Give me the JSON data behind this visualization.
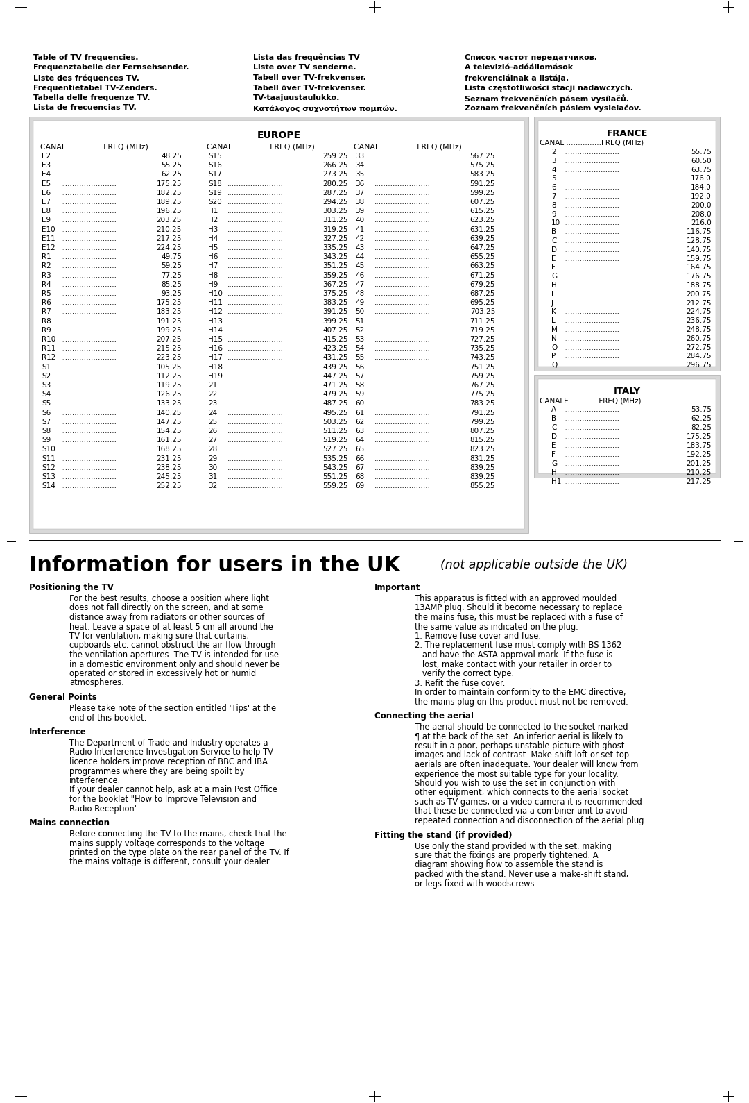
{
  "page_bg": "#ffffff",
  "header_col1": [
    "Table of TV frequencies.",
    "Frequenztabelle der Fernsehsender.",
    "Liste des fréquences TV.",
    "Frequentietabel TV-Zenders.",
    "Tabella delle frequenze TV.",
    "Lista de frecuencias TV."
  ],
  "header_col2": [
    "Lista das frequências TV",
    "Liste over TV senderne.",
    "Tabell over TV-frekvenser.",
    "Tabell över TV-frekvenser.",
    "TV-taajuustaulukko.",
    "Κατάλογος συχνοτήτων πομπών."
  ],
  "header_col3": [
    "Список частот передатчиков.",
    "A televizió-adóállomások",
    "frekvenciáinak a listája.",
    "Lista częstotliwości stacji nadawczych.",
    "Seznam frekvenčních pásem vysílačů.",
    "Zoznam frekvenčních pásiem vysielačov."
  ],
  "europe_col1": [
    [
      "E2",
      "48.25"
    ],
    [
      "E3",
      "55.25"
    ],
    [
      "E4",
      "62.25"
    ],
    [
      "E5",
      "175.25"
    ],
    [
      "E6",
      "182.25"
    ],
    [
      "E7",
      "189.25"
    ],
    [
      "E8",
      "196.25"
    ],
    [
      "E9",
      "203.25"
    ],
    [
      "E10",
      "210.25"
    ],
    [
      "E11",
      "217.25"
    ],
    [
      "E12",
      "224.25"
    ],
    [
      "R1",
      "49.75"
    ],
    [
      "R2",
      "59.25"
    ],
    [
      "R3",
      "77.25"
    ],
    [
      "R4",
      "85.25"
    ],
    [
      "R5",
      "93.25"
    ],
    [
      "R6",
      "175.25"
    ],
    [
      "R7",
      "183.25"
    ],
    [
      "R8",
      "191.25"
    ],
    [
      "R9",
      "199.25"
    ],
    [
      "R10",
      "207.25"
    ],
    [
      "R11",
      "215.25"
    ],
    [
      "R12",
      "223.25"
    ],
    [
      "S1",
      "105.25"
    ],
    [
      "S2",
      "112.25"
    ],
    [
      "S3",
      "119.25"
    ],
    [
      "S4",
      "126.25"
    ],
    [
      "S5",
      "133.25"
    ],
    [
      "S6",
      "140.25"
    ],
    [
      "S7",
      "147.25"
    ],
    [
      "S8",
      "154.25"
    ],
    [
      "S9",
      "161.25"
    ],
    [
      "S10",
      "168.25"
    ],
    [
      "S11",
      "231.25"
    ],
    [
      "S12",
      "238.25"
    ],
    [
      "S13",
      "245.25"
    ],
    [
      "S14",
      "252.25"
    ]
  ],
  "europe_col2": [
    [
      "S15",
      "259.25"
    ],
    [
      "S16",
      "266.25"
    ],
    [
      "S17",
      "273.25"
    ],
    [
      "S18",
      "280.25"
    ],
    [
      "S19",
      "287.25"
    ],
    [
      "S20",
      "294.25"
    ],
    [
      "H1",
      "303.25"
    ],
    [
      "H2",
      "311.25"
    ],
    [
      "H3",
      "319.25"
    ],
    [
      "H4",
      "327.25"
    ],
    [
      "H5",
      "335.25"
    ],
    [
      "H6",
      "343.25"
    ],
    [
      "H7",
      "351.25"
    ],
    [
      "H8",
      "359.25"
    ],
    [
      "H9",
      "367.25"
    ],
    [
      "H10",
      "375.25"
    ],
    [
      "H11",
      "383.25"
    ],
    [
      "H12",
      "391.25"
    ],
    [
      "H13",
      "399.25"
    ],
    [
      "H14",
      "407.25"
    ],
    [
      "H15",
      "415.25"
    ],
    [
      "H16",
      "423.25"
    ],
    [
      "H17",
      "431.25"
    ],
    [
      "H18",
      "439.25"
    ],
    [
      "H19",
      "447.25"
    ],
    [
      "21",
      "471.25"
    ],
    [
      "22",
      "479.25"
    ],
    [
      "23",
      "487.25"
    ],
    [
      "24",
      "495.25"
    ],
    [
      "25",
      "503.25"
    ],
    [
      "26",
      "511.25"
    ],
    [
      "27",
      "519.25"
    ],
    [
      "28",
      "527.25"
    ],
    [
      "29",
      "535.25"
    ],
    [
      "30",
      "543.25"
    ],
    [
      "31",
      "551.25"
    ],
    [
      "32",
      "559.25"
    ]
  ],
  "europe_col3": [
    [
      "33",
      "567.25"
    ],
    [
      "34",
      "575.25"
    ],
    [
      "35",
      "583.25"
    ],
    [
      "36",
      "591.25"
    ],
    [
      "37",
      "599.25"
    ],
    [
      "38",
      "607.25"
    ],
    [
      "39",
      "615.25"
    ],
    [
      "40",
      "623.25"
    ],
    [
      "41",
      "631.25"
    ],
    [
      "42",
      "639.25"
    ],
    [
      "43",
      "647.25"
    ],
    [
      "44",
      "655.25"
    ],
    [
      "45",
      "663.25"
    ],
    [
      "46",
      "671.25"
    ],
    [
      "47",
      "679.25"
    ],
    [
      "48",
      "687.25"
    ],
    [
      "49",
      "695.25"
    ],
    [
      "50",
      "703.25"
    ],
    [
      "51",
      "711.25"
    ],
    [
      "52",
      "719.25"
    ],
    [
      "53",
      "727.25"
    ],
    [
      "54",
      "735.25"
    ],
    [
      "55",
      "743.25"
    ],
    [
      "56",
      "751.25"
    ],
    [
      "57",
      "759.25"
    ],
    [
      "58",
      "767.25"
    ],
    [
      "59",
      "775.25"
    ],
    [
      "60",
      "783.25"
    ],
    [
      "61",
      "791.25"
    ],
    [
      "62",
      "799.25"
    ],
    [
      "63",
      "807.25"
    ],
    [
      "64",
      "815.25"
    ],
    [
      "65",
      "823.25"
    ],
    [
      "66",
      "831.25"
    ],
    [
      "67",
      "839.25"
    ],
    [
      "68",
      "839.25"
    ],
    [
      "69",
      "855.25"
    ]
  ],
  "france_data": [
    [
      "2",
      "55.75"
    ],
    [
      "3",
      "60.50"
    ],
    [
      "4",
      "63.75"
    ],
    [
      "5",
      "176.0"
    ],
    [
      "6",
      "184.0"
    ],
    [
      "7",
      "192.0"
    ],
    [
      "8",
      "200.0"
    ],
    [
      "9",
      "208.0"
    ],
    [
      "10",
      "216.0"
    ],
    [
      "B",
      "116.75"
    ],
    [
      "C",
      "128.75"
    ],
    [
      "D",
      "140.75"
    ],
    [
      "E",
      "159.75"
    ],
    [
      "F",
      "164.75"
    ],
    [
      "G",
      "176.75"
    ],
    [
      "H",
      "188.75"
    ],
    [
      "I",
      "200.75"
    ],
    [
      "J",
      "212.75"
    ],
    [
      "K",
      "224.75"
    ],
    [
      "L",
      "236.75"
    ],
    [
      "M",
      "248.75"
    ],
    [
      "N",
      "260.75"
    ],
    [
      "O",
      "272.75"
    ],
    [
      "P",
      "284.75"
    ],
    [
      "Q",
      "296.75"
    ]
  ],
  "italy_data": [
    [
      "A",
      "53.75"
    ],
    [
      "B",
      "62.25"
    ],
    [
      "C",
      "82.25"
    ],
    [
      "D",
      "175.25"
    ],
    [
      "E",
      "183.75"
    ],
    [
      "F",
      "192.25"
    ],
    [
      "G",
      "201.25"
    ],
    [
      "H",
      "210.25"
    ],
    [
      "H1",
      "217.25"
    ]
  ],
  "section_title": "Information for users in the UK",
  "section_subtitle": "(not applicable outside the UK)",
  "left_sections": [
    {
      "heading": "Positioning the TV",
      "lines": [
        "For the best results, choose a position where light",
        "does not fall directly on the screen, and at some",
        "distance away from radiators or other sources of",
        "heat. Leave a space of at least 5 cm all around the",
        "TV for ventilation, making sure that curtains,",
        "cupboards etc. cannot obstruct the air flow through",
        "the ventilation apertures. The TV is intended for use",
        "in a domestic environment only and should never be",
        "operated or stored in excessively hot or humid",
        "atmospheres."
      ]
    },
    {
      "heading": "General Points",
      "lines": [
        "Please take note of the section entitled 'Tips' at the",
        "end of this booklet."
      ]
    },
    {
      "heading": "Interference",
      "lines": [
        "The Department of Trade and Industry operates a",
        "Radio Interference Investigation Service to help TV",
        "licence holders improve reception of BBC and IBA",
        "programmes where they are being spoilt by",
        "interference.",
        "If your dealer cannot help, ask at a main Post Office",
        "for the booklet \"How to Improve Television and",
        "Radio Reception\"."
      ]
    },
    {
      "heading": "Mains connection",
      "lines": [
        "Before connecting the TV to the mains, check that the",
        "mains supply voltage corresponds to the voltage",
        "printed on the type plate on the rear panel of the TV. If",
        "the mains voltage is different, consult your dealer."
      ]
    }
  ],
  "right_sections": [
    {
      "heading": "Important",
      "lines": [
        "This apparatus is fitted with an approved moulded",
        "13AMP plug. Should it become necessary to replace",
        "the mains fuse, this must be replaced with a fuse of",
        "the same value as indicated on the plug.",
        "1. Remove fuse cover and fuse.",
        "2. The replacement fuse must comply with BS 1362",
        "   and have the ASTA approval mark. If the fuse is",
        "   lost, make contact with your retailer in order to",
        "   verify the correct type.",
        "3. Refit the fuse cover.",
        "In order to maintain conformity to the EMC directive,",
        "the mains plug on this product must not be removed."
      ]
    },
    {
      "heading": "Connecting the aerial",
      "lines": [
        "The aerial should be connected to the socket marked",
        "¶ at the back of the set. An inferior aerial is likely to",
        "result in a poor, perhaps unstable picture with ghost",
        "images and lack of contrast. Make-shift loft or set-top",
        "aerials are often inadequate. Your dealer will know from",
        "experience the most suitable type for your locality.",
        "Should you wish to use the set in conjunction with",
        "other equipment, which connects to the aerial socket",
        "such as TV games, or a video camera it is recommended",
        "that these be connected via a combiner unit to avoid",
        "repeated connection and disconnection of the aerial plug."
      ]
    },
    {
      "heading": "Fitting the stand (if provided)",
      "lines": [
        "Use only the stand provided with the set, making",
        "sure that the fixings are properly tightened. A",
        "diagram showing how to assemble the stand is",
        "packed with the stand. Never use a make-shift stand,",
        "or legs fixed with woodscrews."
      ]
    }
  ]
}
